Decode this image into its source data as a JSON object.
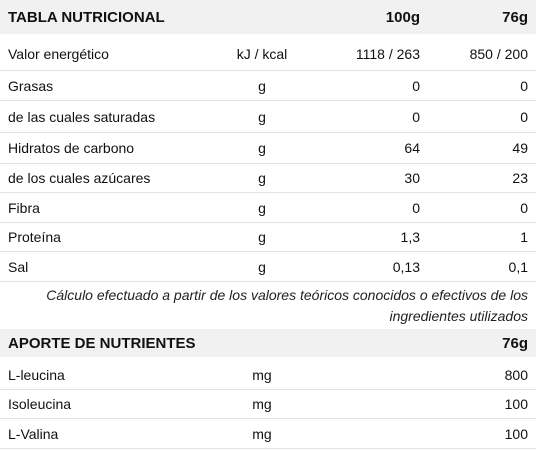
{
  "nutrition_table": {
    "header": {
      "title": "TABLA NUTRICIONAL",
      "col_100g": "100g",
      "col_76g": "76g"
    },
    "rows": [
      {
        "name": "Valor energético",
        "unit": "kJ / kcal",
        "v100": "1118 / 263",
        "v76": "850 / 200"
      },
      {
        "name": "Grasas",
        "unit": "g",
        "v100": "0",
        "v76": "0"
      },
      {
        "name": "de las cuales saturadas",
        "unit": "g",
        "v100": "0",
        "v76": "0"
      },
      {
        "name": "Hidratos de carbono",
        "unit": "g",
        "v100": "64",
        "v76": "49"
      },
      {
        "name": "de los cuales azúcares",
        "unit": "g",
        "v100": "30",
        "v76": "23"
      },
      {
        "name": "Fibra",
        "unit": "g",
        "v100": "0",
        "v76": "0"
      },
      {
        "name": "Proteína",
        "unit": "g",
        "v100": "1,3",
        "v76": "1"
      },
      {
        "name": "Sal",
        "unit": "g",
        "v100": "0,13",
        "v76": "0,1"
      }
    ],
    "note": "Cálculo efectuado a partir de los valores teóricos conocidos o efectivos de los ingredientes utilizados"
  },
  "nutrients_table": {
    "header": {
      "title": "APORTE DE NUTRIENTES",
      "col_76g": "76g"
    },
    "rows": [
      {
        "name": "L-leucina",
        "unit": "mg",
        "v76": "800"
      },
      {
        "name": "Isoleucina",
        "unit": "mg",
        "v76": "100"
      },
      {
        "name": "L-Valina",
        "unit": "mg",
        "v76": "100"
      }
    ]
  }
}
